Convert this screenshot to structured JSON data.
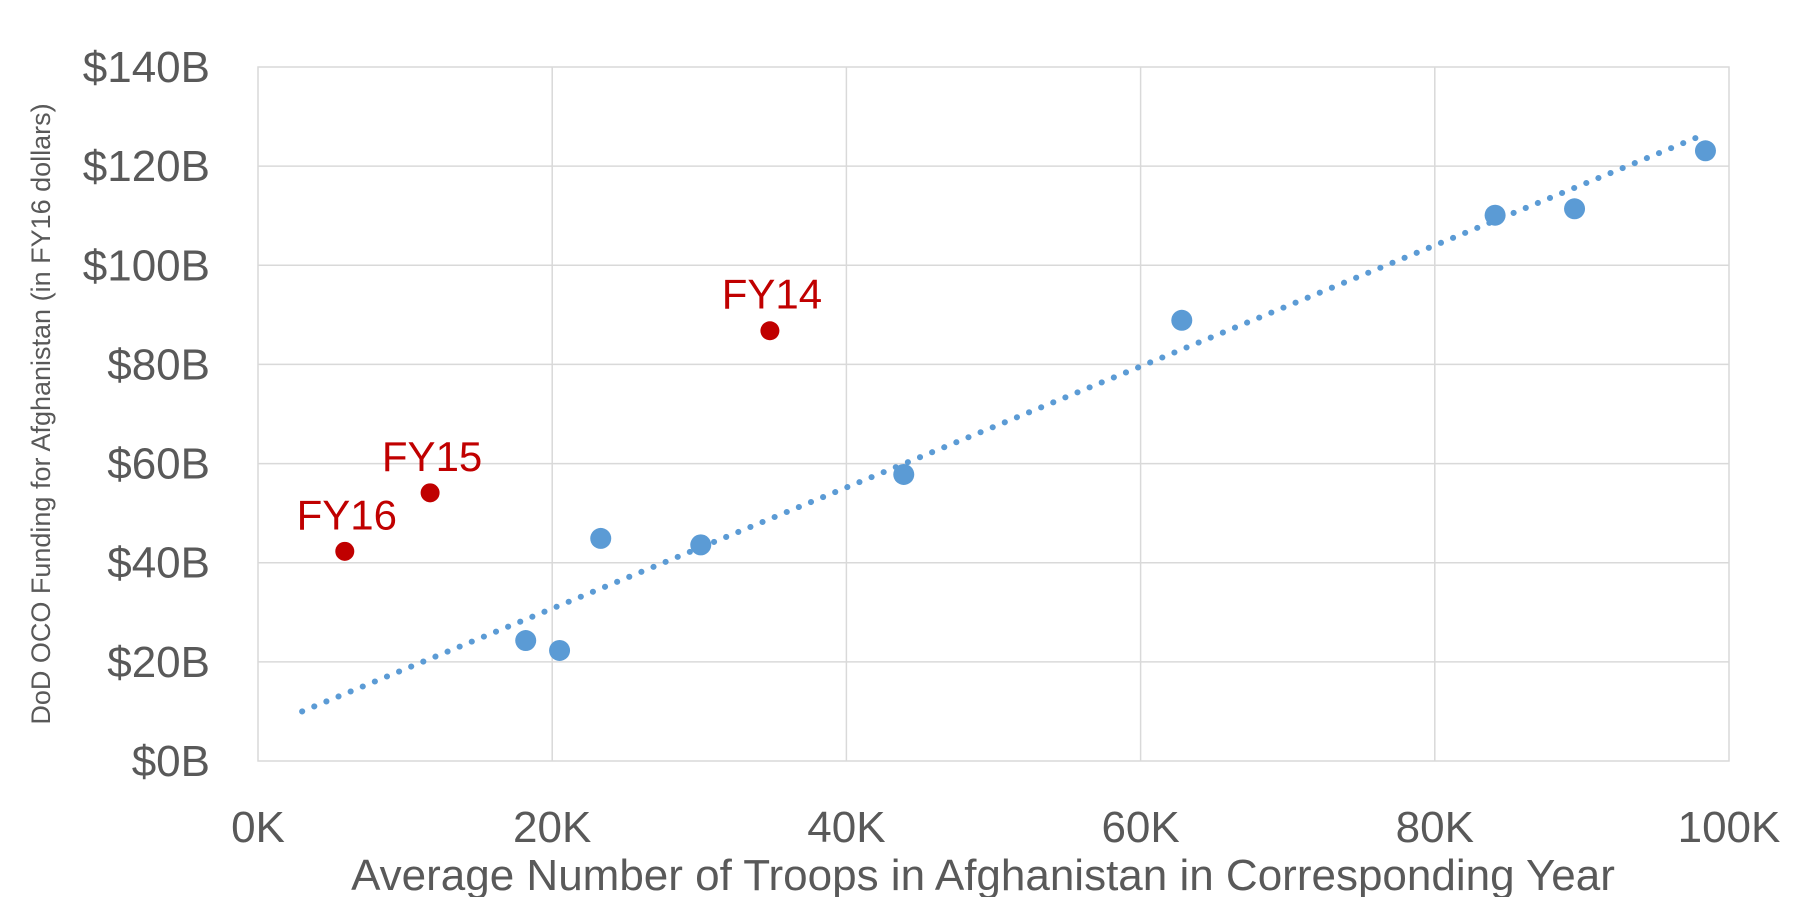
{
  "chart_data": {
    "type": "scatter",
    "xlabel": "Average Number of Troops in Afghanistan in Corresponding Year",
    "ylabel": "DoD OCO Funding for Afghanistan (in FY16 dollars)",
    "xlim": [
      0,
      100000
    ],
    "ylim": [
      0,
      140
    ],
    "x_ticks": [
      {
        "value": 0,
        "label": "0K"
      },
      {
        "value": 20000,
        "label": "20K"
      },
      {
        "value": 40000,
        "label": "40K"
      },
      {
        "value": 60000,
        "label": "60K"
      },
      {
        "value": 80000,
        "label": "80K"
      },
      {
        "value": 100000,
        "label": "100K"
      }
    ],
    "y_ticks": [
      {
        "value": 0,
        "label": "$0B"
      },
      {
        "value": 20,
        "label": "$20B"
      },
      {
        "value": 40,
        "label": "$40B"
      },
      {
        "value": 60,
        "label": "$60B"
      },
      {
        "value": 80,
        "label": "$80B"
      },
      {
        "value": 100,
        "label": "$100B"
      },
      {
        "value": 120,
        "label": "$120B"
      },
      {
        "value": 140,
        "label": "$140B"
      }
    ],
    "grid": true,
    "series": [
      {
        "color": "#5b9bd5",
        "points": [
          {
            "x": 18200,
            "y": 24.3
          },
          {
            "x": 20500,
            "y": 22.3
          },
          {
            "x": 23300,
            "y": 44.9
          },
          {
            "x": 30100,
            "y": 43.6
          },
          {
            "x": 43900,
            "y": 57.8
          },
          {
            "x": 62800,
            "y": 88.9
          },
          {
            "x": 84100,
            "y": 110.1
          },
          {
            "x": 89500,
            "y": 111.4
          },
          {
            "x": 98400,
            "y": 123.1
          }
        ]
      },
      {
        "color": "#c00000",
        "points": [
          {
            "x": 34800,
            "y": 86.8,
            "label": "FY14"
          },
          {
            "x": 11700,
            "y": 54.1,
            "label": "FY15"
          },
          {
            "x": 5900,
            "y": 42.3,
            "label": "FY16"
          }
        ]
      }
    ],
    "trendline": {
      "style": "dotted",
      "color": "#5b9bd5",
      "from": {
        "x": 3000,
        "y": 10.0
      },
      "to": {
        "x": 98000,
        "y": 126.0
      }
    }
  }
}
